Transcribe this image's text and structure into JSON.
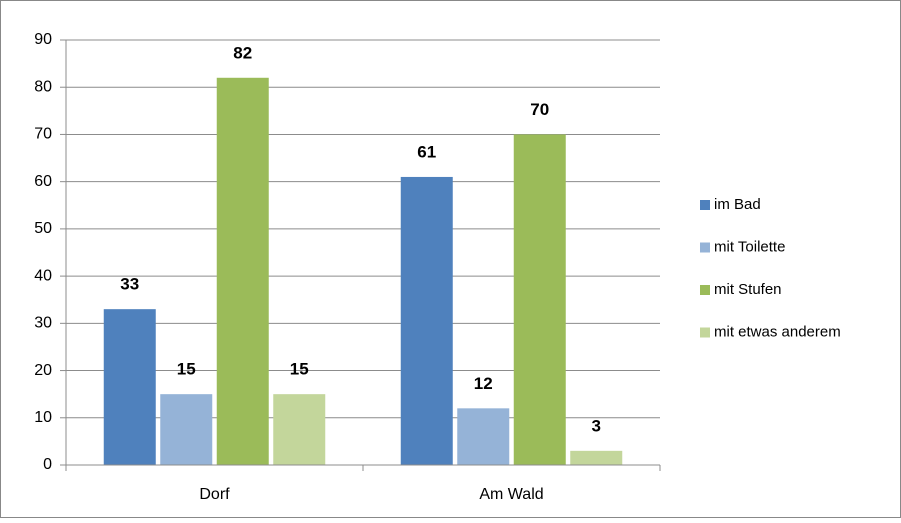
{
  "chart_data": {
    "type": "bar",
    "categories": [
      "Dorf",
      "Am Wald"
    ],
    "series": [
      {
        "name": "im Bad",
        "color": "#4f81bd",
        "values": [
          33,
          61
        ]
      },
      {
        "name": "mit Toilette",
        "color": "#95b3d7",
        "values": [
          15,
          12
        ]
      },
      {
        "name": "mit Stufen",
        "color": "#9bbb59",
        "values": [
          82,
          70
        ]
      },
      {
        "name": "mit etwas anderem",
        "color": "#c3d69b",
        "values": [
          15,
          3
        ]
      }
    ],
    "ylim": [
      0,
      90
    ],
    "yticks": [
      0,
      10,
      20,
      30,
      40,
      50,
      60,
      70,
      80,
      90
    ],
    "grid": true,
    "legend": "right"
  }
}
